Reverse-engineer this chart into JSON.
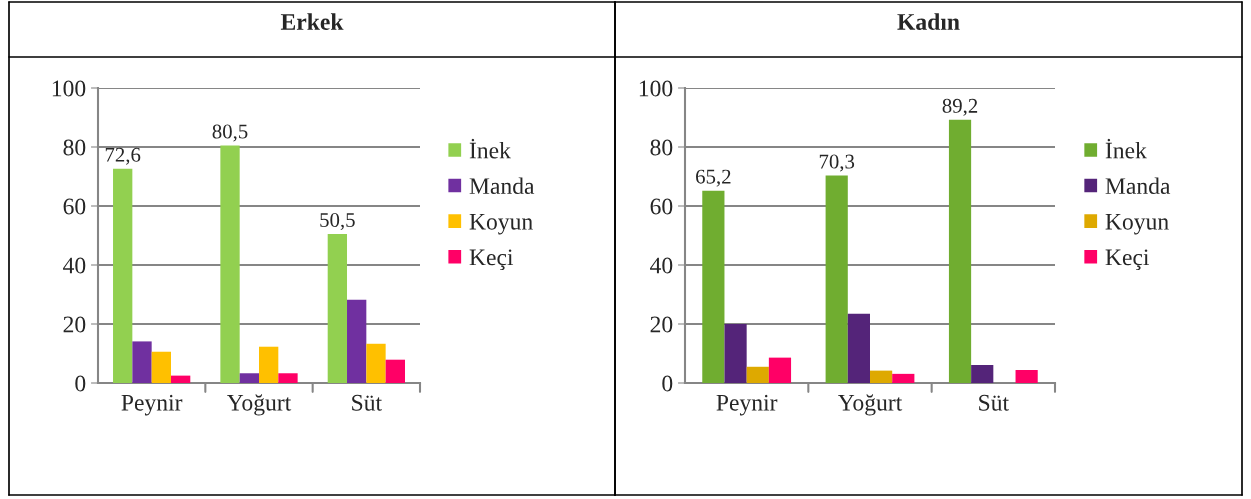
{
  "chart_data": [
    {
      "type": "bar",
      "title": "Erkek",
      "categories": [
        "Peynir",
        "Yoğurt",
        "Süt"
      ],
      "ylim": [
        0,
        100
      ],
      "yticks": [
        0,
        20,
        40,
        60,
        80,
        100
      ],
      "grid": "y",
      "legend": "right",
      "series": [
        {
          "name": "İnek",
          "color": "#92d050",
          "values": [
            72.6,
            80.5,
            50.5
          ],
          "value_labels": [
            "72,6",
            "80,5",
            "50,5"
          ]
        },
        {
          "name": "Manda",
          "color": "#7030a0",
          "values": [
            14.1,
            3.3,
            28.2
          ]
        },
        {
          "name": "Koyun",
          "color": "#ffc000",
          "values": [
            10.6,
            12.3,
            13.3
          ]
        },
        {
          "name": "Keçi",
          "color": "#ff0066",
          "values": [
            2.5,
            3.3,
            7.9
          ]
        }
      ]
    },
    {
      "type": "bar",
      "title": "Kadın",
      "categories": [
        "Peynir",
        "Yoğurt",
        "Süt"
      ],
      "ylim": [
        0,
        100
      ],
      "yticks": [
        0,
        20,
        40,
        60,
        80,
        100
      ],
      "grid": "y",
      "legend": "right",
      "series": [
        {
          "name": "İnek",
          "color": "#70ad30",
          "values": [
            65.2,
            70.3,
            89.2
          ],
          "value_labels": [
            "65,2",
            "70,3",
            "89,2"
          ]
        },
        {
          "name": "Manda",
          "color": "#542479",
          "values": [
            20.0,
            23.5,
            6.1
          ]
        },
        {
          "name": "Koyun",
          "color": "#dea900",
          "values": [
            5.5,
            4.2,
            null
          ]
        },
        {
          "name": "Keçi",
          "color": "#ff0066",
          "values": [
            8.6,
            3.1,
            4.4
          ]
        }
      ]
    }
  ]
}
